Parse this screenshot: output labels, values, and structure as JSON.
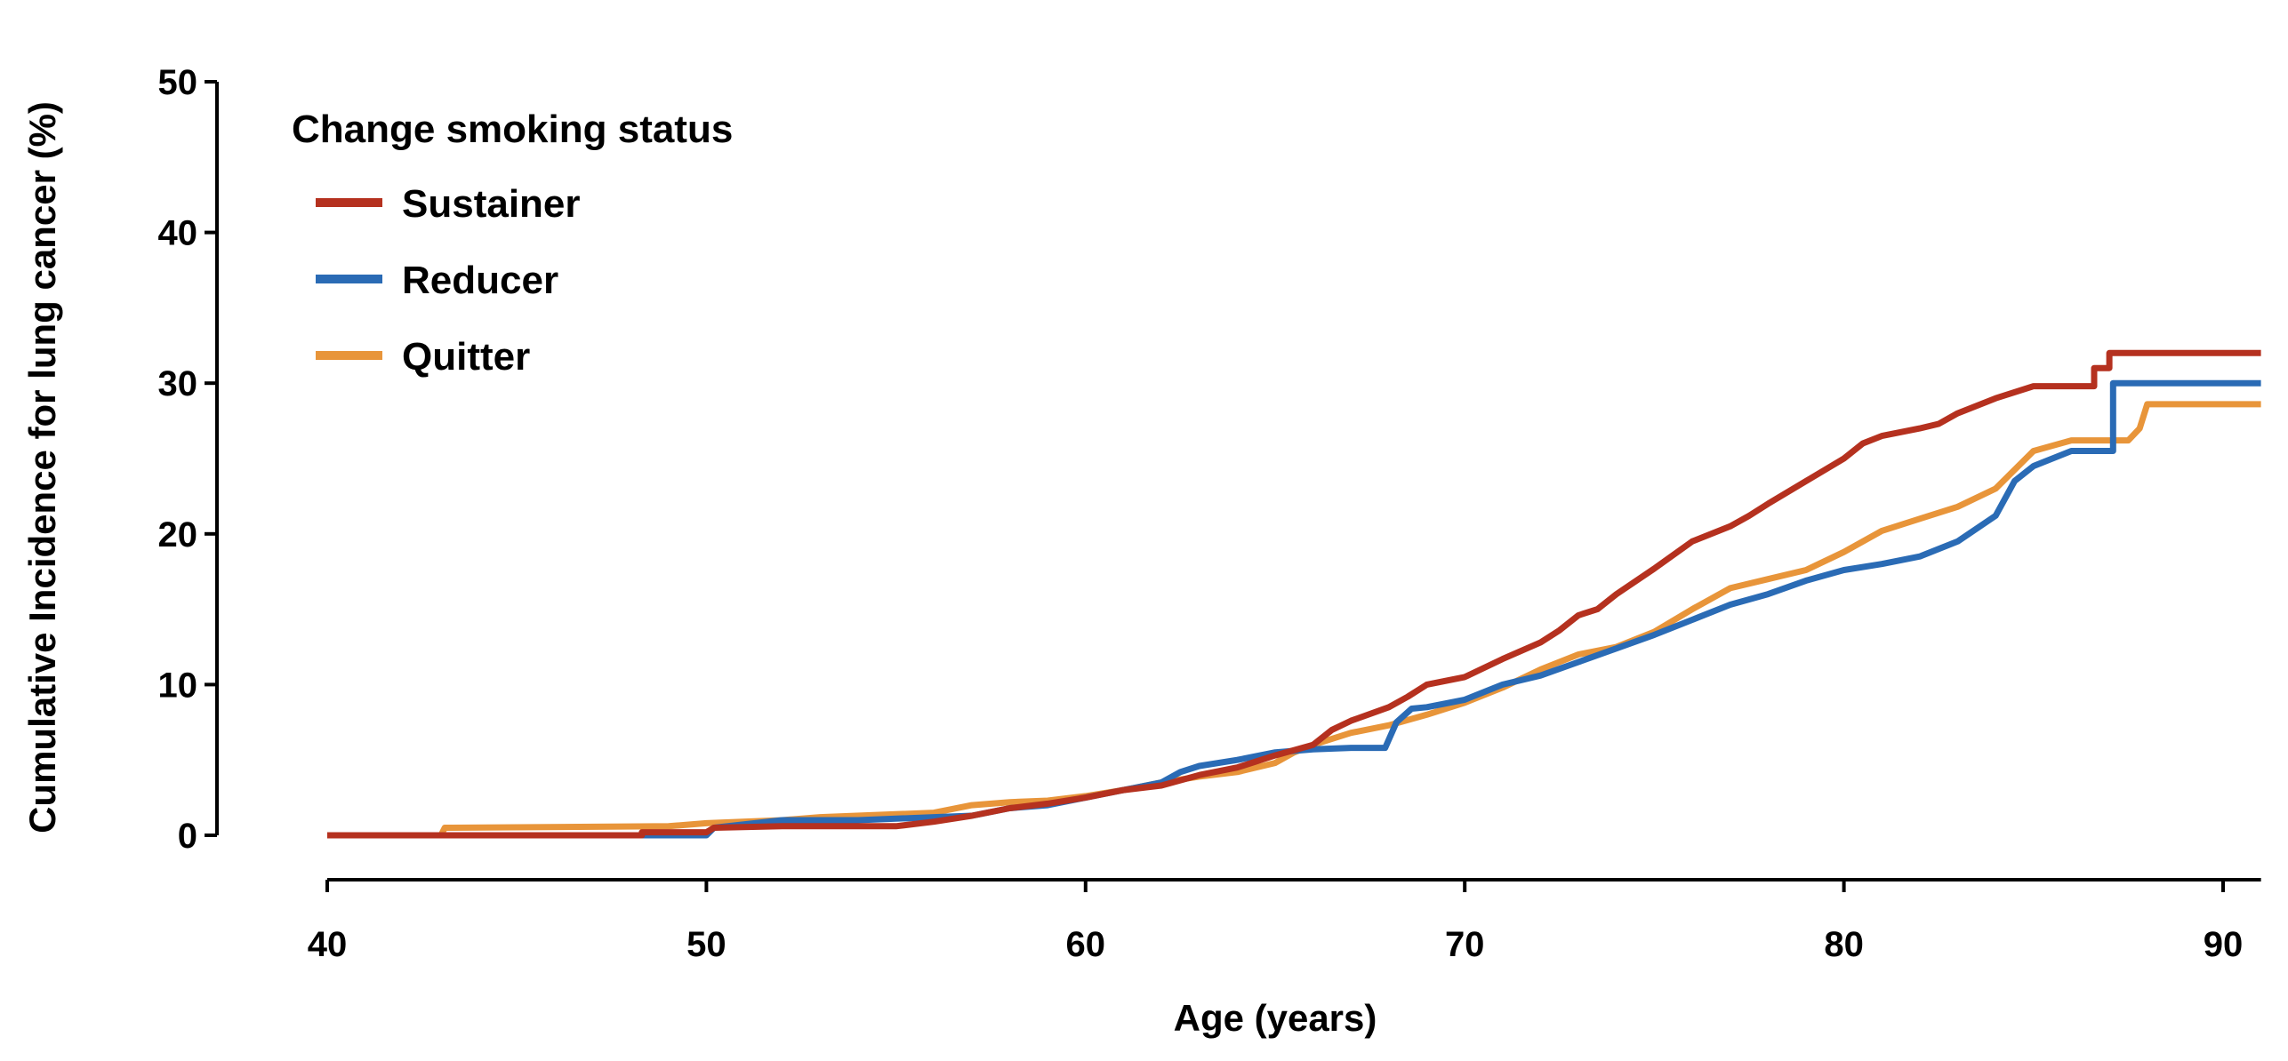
{
  "chart_data": {
    "type": "line",
    "title": "",
    "xlabel": "Age (years)",
    "ylabel": "Cumulative Incidence for lung cancer (%)",
    "xlim": [
      40,
      91
    ],
    "ylim": [
      0,
      50
    ],
    "xticks": [
      "40",
      "50",
      "60",
      "70",
      "80",
      "90"
    ],
    "yticks": [
      "0",
      "10",
      "20",
      "30",
      "40",
      "50"
    ],
    "grid": false,
    "legend": {
      "title": "Change smoking status",
      "position": "top-left"
    },
    "series": [
      {
        "name": "Sustainer",
        "color": "#b5311f",
        "points": [
          [
            40,
            0
          ],
          [
            43,
            0
          ],
          [
            48.3,
            0
          ],
          [
            48.3,
            0.2
          ],
          [
            50,
            0.2
          ],
          [
            50.2,
            0.5
          ],
          [
            52,
            0.6
          ],
          [
            53,
            0.6
          ],
          [
            55,
            0.6
          ],
          [
            56,
            0.9
          ],
          [
            57,
            1.3
          ],
          [
            58,
            1.8
          ],
          [
            59,
            2.1
          ],
          [
            60,
            2.5
          ],
          [
            61,
            3.0
          ],
          [
            62,
            3.3
          ],
          [
            63,
            4.0
          ],
          [
            64,
            4.5
          ],
          [
            65,
            5.3
          ],
          [
            66,
            6.0
          ],
          [
            66.5,
            7.0
          ],
          [
            67,
            7.6
          ],
          [
            68,
            8.5
          ],
          [
            68.5,
            9.2
          ],
          [
            69,
            10.0
          ],
          [
            70,
            10.5
          ],
          [
            71,
            11.7
          ],
          [
            72,
            12.8
          ],
          [
            72.5,
            13.6
          ],
          [
            73,
            14.6
          ],
          [
            73.5,
            15.0
          ],
          [
            74,
            16.0
          ],
          [
            75,
            17.7
          ],
          [
            76,
            19.5
          ],
          [
            77,
            20.5
          ],
          [
            77.5,
            21.2
          ],
          [
            78,
            22.0
          ],
          [
            79,
            23.5
          ],
          [
            80,
            25.0
          ],
          [
            80.5,
            26.0
          ],
          [
            81,
            26.5
          ],
          [
            82,
            27.0
          ],
          [
            82.5,
            27.3
          ],
          [
            83,
            28.0
          ],
          [
            84,
            29.0
          ],
          [
            85,
            29.8
          ],
          [
            86,
            29.8
          ],
          [
            86.6,
            29.8
          ],
          [
            86.6,
            31.0
          ],
          [
            87,
            31.0
          ],
          [
            87,
            32.0
          ],
          [
            91,
            32.0
          ]
        ]
      },
      {
        "name": "Reducer",
        "color": "#2a6bb5",
        "points": [
          [
            40,
            0
          ],
          [
            43,
            0
          ],
          [
            50,
            0
          ],
          [
            50.2,
            0.5
          ],
          [
            52,
            1.0
          ],
          [
            54,
            1.0
          ],
          [
            56,
            1.2
          ],
          [
            57,
            1.3
          ],
          [
            58,
            1.8
          ],
          [
            59,
            2.0
          ],
          [
            60,
            2.5
          ],
          [
            61,
            3.0
          ],
          [
            62,
            3.5
          ],
          [
            62.5,
            4.2
          ],
          [
            63,
            4.6
          ],
          [
            64,
            5.0
          ],
          [
            65,
            5.5
          ],
          [
            66,
            5.7
          ],
          [
            67,
            5.8
          ],
          [
            67.9,
            5.8
          ],
          [
            68.2,
            7.5
          ],
          [
            68.6,
            8.4
          ],
          [
            69,
            8.5
          ],
          [
            70,
            9.0
          ],
          [
            71,
            10.0
          ],
          [
            72,
            10.6
          ],
          [
            73,
            11.5
          ],
          [
            74,
            12.4
          ],
          [
            75,
            13.3
          ],
          [
            76,
            14.3
          ],
          [
            77,
            15.3
          ],
          [
            78,
            16.0
          ],
          [
            79,
            16.9
          ],
          [
            80,
            17.6
          ],
          [
            81,
            18.0
          ],
          [
            82,
            18.5
          ],
          [
            83,
            19.5
          ],
          [
            84,
            21.2
          ],
          [
            84.5,
            23.5
          ],
          [
            85,
            24.5
          ],
          [
            86,
            25.5
          ],
          [
            87.1,
            25.5
          ],
          [
            87.1,
            30.0
          ],
          [
            91,
            30.0
          ]
        ]
      },
      {
        "name": "Quitter",
        "color": "#e8953a",
        "points": [
          [
            40,
            0
          ],
          [
            43,
            0
          ],
          [
            43.1,
            0.5
          ],
          [
            49,
            0.6
          ],
          [
            50,
            0.8
          ],
          [
            52,
            1.0
          ],
          [
            53,
            1.2
          ],
          [
            55,
            1.4
          ],
          [
            56,
            1.5
          ],
          [
            57,
            2.0
          ],
          [
            58,
            2.2
          ],
          [
            59,
            2.3
          ],
          [
            60,
            2.6
          ],
          [
            61,
            3.0
          ],
          [
            62,
            3.5
          ],
          [
            63,
            3.9
          ],
          [
            64,
            4.2
          ],
          [
            65,
            4.8
          ],
          [
            65.5,
            5.5
          ],
          [
            66,
            6.0
          ],
          [
            67,
            6.8
          ],
          [
            68,
            7.3
          ],
          [
            69,
            8.0
          ],
          [
            70,
            8.8
          ],
          [
            71,
            9.8
          ],
          [
            72,
            11.0
          ],
          [
            73,
            12.0
          ],
          [
            74,
            12.5
          ],
          [
            75,
            13.5
          ],
          [
            76,
            15.0
          ],
          [
            77,
            16.4
          ],
          [
            78,
            17.0
          ],
          [
            79,
            17.6
          ],
          [
            80,
            18.8
          ],
          [
            81,
            20.2
          ],
          [
            82,
            21.0
          ],
          [
            83,
            21.8
          ],
          [
            84,
            23.0
          ],
          [
            85,
            25.5
          ],
          [
            86,
            26.2
          ],
          [
            87.5,
            26.2
          ],
          [
            87.8,
            27.0
          ],
          [
            88,
            28.6
          ],
          [
            91,
            28.6
          ]
        ]
      }
    ]
  }
}
